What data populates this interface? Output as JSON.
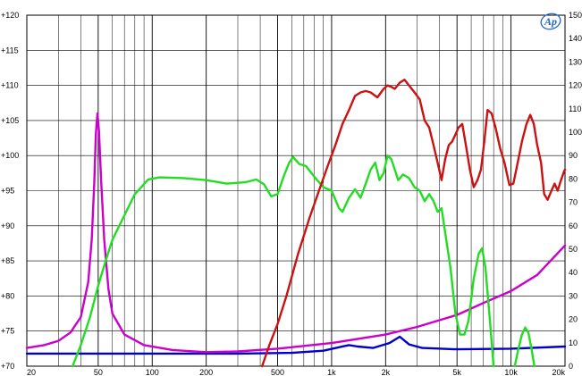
{
  "chart_data": {
    "type": "line",
    "x_scale": "log",
    "xlim": [
      20,
      20000
    ],
    "ylim_left": [
      70,
      120
    ],
    "ylim_right": [
      0,
      150
    ],
    "grid": true,
    "legend": "none",
    "x_ticks": [
      {
        "value": 20,
        "label": "20"
      },
      {
        "value": 50,
        "label": "50"
      },
      {
        "value": 100,
        "label": "100"
      },
      {
        "value": 200,
        "label": "200"
      },
      {
        "value": 500,
        "label": "500"
      },
      {
        "value": 1000,
        "label": "1k"
      },
      {
        "value": 2000,
        "label": "2k"
      },
      {
        "value": 5000,
        "label": "5k"
      },
      {
        "value": 10000,
        "label": "10k"
      },
      {
        "value": 20000,
        "label": "20k"
      }
    ],
    "y_left_ticks": [
      {
        "value": 70,
        "label": "+70"
      },
      {
        "value": 75,
        "label": "+75"
      },
      {
        "value": 80,
        "label": "+80"
      },
      {
        "value": 85,
        "label": "+85"
      },
      {
        "value": 90,
        "label": "+90"
      },
      {
        "value": 95,
        "label": "+95"
      },
      {
        "value": 100,
        "label": "+100"
      },
      {
        "value": 105,
        "label": "+105"
      },
      {
        "value": 110,
        "label": "+110"
      },
      {
        "value": 115,
        "label": "+115"
      },
      {
        "value": 120,
        "label": "+120"
      }
    ],
    "y_right_ticks": [
      {
        "value": 0,
        "label": "0"
      },
      {
        "value": 10,
        "label": "10"
      },
      {
        "value": 20,
        "label": "20"
      },
      {
        "value": 30,
        "label": "30"
      },
      {
        "value": 40,
        "label": "40"
      },
      {
        "value": 50,
        "label": "50"
      },
      {
        "value": 60,
        "label": "60"
      },
      {
        "value": 70,
        "label": "70"
      },
      {
        "value": 80,
        "label": "80"
      },
      {
        "value": 90,
        "label": "90"
      },
      {
        "value": 100,
        "label": "100"
      },
      {
        "value": 110,
        "label": "110"
      },
      {
        "value": 120,
        "label": "120"
      },
      {
        "value": 130,
        "label": "130"
      },
      {
        "value": 140,
        "label": "140"
      },
      {
        "value": 150,
        "label": "150"
      }
    ],
    "series": [
      {
        "color": "#0000cc",
        "axis": "left",
        "points": [
          [
            20,
            71.8
          ],
          [
            100,
            71.8
          ],
          [
            300,
            71.8
          ],
          [
            600,
            71.9
          ],
          [
            900,
            72.2
          ],
          [
            1100,
            72.7
          ],
          [
            1250,
            73.0
          ],
          [
            1400,
            72.8
          ],
          [
            1700,
            72.6
          ],
          [
            2100,
            73.3
          ],
          [
            2400,
            74.2
          ],
          [
            2700,
            73.1
          ],
          [
            3200,
            72.6
          ],
          [
            5000,
            72.4
          ],
          [
            10000,
            72.5
          ],
          [
            20000,
            72.8
          ]
        ]
      },
      {
        "color": "#cc00cc",
        "axis": "left",
        "points": [
          [
            20,
            72.6
          ],
          [
            25,
            73.0
          ],
          [
            30,
            73.6
          ],
          [
            35,
            74.8
          ],
          [
            40,
            77.0
          ],
          [
            44,
            82.0
          ],
          [
            46,
            88.0
          ],
          [
            47.5,
            96.0
          ],
          [
            48.5,
            103.0
          ],
          [
            49.5,
            106.0
          ],
          [
            50.5,
            103.5
          ],
          [
            52,
            96.0
          ],
          [
            54,
            88.0
          ],
          [
            57,
            81.0
          ],
          [
            60,
            77.5
          ],
          [
            70,
            74.5
          ],
          [
            90,
            73.0
          ],
          [
            130,
            72.3
          ],
          [
            200,
            72.0
          ],
          [
            300,
            72.1
          ],
          [
            500,
            72.5
          ],
          [
            1000,
            73.3
          ],
          [
            2000,
            74.5
          ],
          [
            3000,
            75.6
          ],
          [
            5000,
            77.3
          ],
          [
            7000,
            79.0
          ],
          [
            10000,
            80.7
          ],
          [
            14000,
            83.0
          ],
          [
            20000,
            87.2
          ]
        ]
      },
      {
        "color": "#22dd22",
        "axis": "left",
        "points": [
          [
            36,
            70.0
          ],
          [
            40,
            73.0
          ],
          [
            45,
            77.0
          ],
          [
            50,
            81.5
          ],
          [
            55,
            85.0
          ],
          [
            60,
            88.0
          ],
          [
            70,
            91.5
          ],
          [
            80,
            94.5
          ],
          [
            95,
            96.6
          ],
          [
            110,
            96.9
          ],
          [
            150,
            96.8
          ],
          [
            200,
            96.5
          ],
          [
            260,
            96.0
          ],
          [
            330,
            96.2
          ],
          [
            380,
            96.6
          ],
          [
            420,
            95.9
          ],
          [
            460,
            94.2
          ],
          [
            500,
            94.5
          ],
          [
            540,
            97.0
          ],
          [
            580,
            99.0
          ],
          [
            610,
            99.8
          ],
          [
            660,
            98.8
          ],
          [
            720,
            98.5
          ],
          [
            800,
            97.0
          ],
          [
            900,
            95.5
          ],
          [
            1000,
            95.0
          ],
          [
            1100,
            92.5
          ],
          [
            1150,
            92.0
          ],
          [
            1250,
            94.0
          ],
          [
            1350,
            95.2
          ],
          [
            1450,
            94.0
          ],
          [
            1550,
            96.0
          ],
          [
            1650,
            98.0
          ],
          [
            1750,
            99.0
          ],
          [
            1850,
            96.5
          ],
          [
            1950,
            97.5
          ],
          [
            2050,
            100.0
          ],
          [
            2150,
            99.5
          ],
          [
            2250,
            98.0
          ],
          [
            2350,
            96.5
          ],
          [
            2500,
            97.3
          ],
          [
            2700,
            96.8
          ],
          [
            2900,
            95.5
          ],
          [
            3100,
            95.0
          ],
          [
            3300,
            93.5
          ],
          [
            3500,
            94.5
          ],
          [
            3700,
            93.5
          ],
          [
            3900,
            92.0
          ],
          [
            4100,
            92.5
          ],
          [
            4300,
            89.0
          ],
          [
            4600,
            84.0
          ],
          [
            4900,
            77.5
          ],
          [
            5200,
            74.5
          ],
          [
            5500,
            74.5
          ],
          [
            5800,
            76.5
          ],
          [
            6200,
            82.5
          ],
          [
            6600,
            86.0
          ],
          [
            6900,
            86.8
          ],
          [
            7200,
            84.0
          ],
          [
            7600,
            77.0
          ],
          [
            8000,
            70.0
          ]
        ]
      },
      {
        "color": "#22dd22",
        "axis": "left",
        "points": [
          [
            10500,
            70.0
          ],
          [
            11000,
            72.5
          ],
          [
            11500,
            74.5
          ],
          [
            12000,
            75.5
          ],
          [
            12500,
            74.8
          ],
          [
            13000,
            72.5
          ],
          [
            13500,
            70.0
          ]
        ]
      },
      {
        "color": "#cc1111",
        "axis": "left",
        "points": [
          [
            410,
            70.0
          ],
          [
            450,
            73.0
          ],
          [
            500,
            76.0
          ],
          [
            560,
            80.0
          ],
          [
            650,
            86.0
          ],
          [
            750,
            91.0
          ],
          [
            850,
            95.0
          ],
          [
            950,
            98.5
          ],
          [
            1050,
            101.5
          ],
          [
            1150,
            104.5
          ],
          [
            1250,
            106.5
          ],
          [
            1350,
            108.5
          ],
          [
            1450,
            109.0
          ],
          [
            1550,
            109.2
          ],
          [
            1650,
            109.0
          ],
          [
            1800,
            108.3
          ],
          [
            1950,
            109.5
          ],
          [
            2050,
            110.0
          ],
          [
            2150,
            109.8
          ],
          [
            2250,
            109.5
          ],
          [
            2400,
            110.4
          ],
          [
            2550,
            110.8
          ],
          [
            2700,
            110.0
          ],
          [
            2900,
            109.0
          ],
          [
            3100,
            108.0
          ],
          [
            3300,
            105.0
          ],
          [
            3500,
            104.0
          ],
          [
            3700,
            101.5
          ],
          [
            3900,
            99.0
          ],
          [
            4100,
            96.5
          ],
          [
            4300,
            99.5
          ],
          [
            4500,
            101.5
          ],
          [
            4700,
            102.0
          ],
          [
            4900,
            103.0
          ],
          [
            5100,
            104.0
          ],
          [
            5350,
            104.5
          ],
          [
            5600,
            101.5
          ],
          [
            5900,
            98.0
          ],
          [
            6200,
            95.5
          ],
          [
            6500,
            96.5
          ],
          [
            6800,
            98.0
          ],
          [
            7100,
            102.0
          ],
          [
            7400,
            106.5
          ],
          [
            7800,
            106.0
          ],
          [
            8200,
            104.0
          ],
          [
            8700,
            101.0
          ],
          [
            9200,
            99.0
          ],
          [
            9800,
            95.8
          ],
          [
            10300,
            96.0
          ],
          [
            10800,
            98.5
          ],
          [
            11500,
            102.0
          ],
          [
            12200,
            104.5
          ],
          [
            12800,
            105.8
          ],
          [
            13400,
            104.5
          ],
          [
            14000,
            101.5
          ],
          [
            14700,
            99.0
          ],
          [
            15300,
            94.5
          ],
          [
            16000,
            93.7
          ],
          [
            16800,
            95.0
          ],
          [
            17500,
            96.0
          ],
          [
            18200,
            95.0
          ],
          [
            19000,
            96.5
          ],
          [
            19800,
            97.8
          ],
          [
            20000,
            98.0
          ]
        ]
      }
    ]
  },
  "logo": {
    "text": "Ap",
    "color": "#2266cc"
  }
}
